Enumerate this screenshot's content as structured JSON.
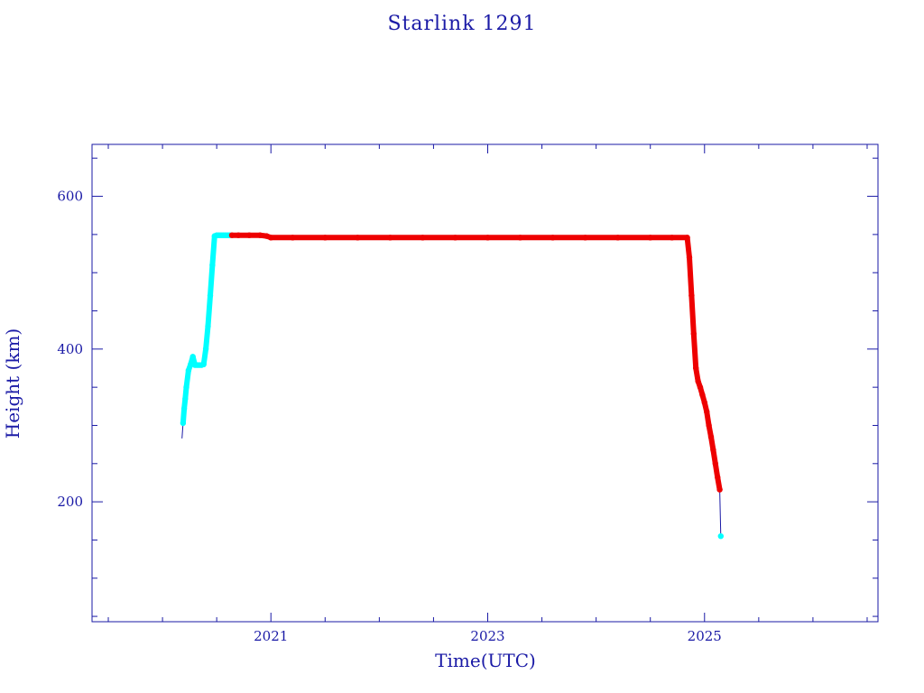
{
  "chart_data": {
    "type": "line",
    "title": "Starlink 1291",
    "xlabel": "Time(UTC)",
    "ylabel": "Height (km)",
    "xlim": [
      2019.35,
      2026.6
    ],
    "ylim": [
      43,
      668
    ],
    "x_major_ticks": [
      2021,
      2023,
      2025
    ],
    "x_minor_step": 0.5,
    "y_major_ticks": [
      200,
      400,
      600
    ],
    "y_minor_step": 50,
    "grid": false,
    "legend": "none",
    "colors": {
      "axes": "#1a1aa6",
      "line": "#1a1aa6",
      "phase1": "#00ffff",
      "phase2": "#ee0000"
    },
    "series": [
      {
        "color": "#00ffff",
        "x": [
          2020.19,
          2020.2,
          2020.21,
          2020.22,
          2020.24,
          2020.26,
          2020.28,
          2020.3,
          2020.32,
          2020.34,
          2020.36,
          2020.38,
          2020.4,
          2020.42,
          2020.44,
          2020.46,
          2020.48,
          2020.5,
          2020.52,
          2020.54,
          2020.56,
          2020.58,
          2020.6,
          2020.62
        ],
        "y": [
          303,
          322,
          335,
          350,
          372,
          380,
          390,
          379,
          379,
          379,
          379,
          380,
          400,
          430,
          470,
          510,
          548,
          549,
          549,
          549,
          549,
          549,
          549,
          549
        ]
      },
      {
        "color": "#ee0000",
        "x": [
          2020.64,
          2020.7,
          2020.8,
          2020.9,
          2020.96,
          2021.0,
          2021.2,
          2021.5,
          2021.8,
          2022.1,
          2022.4,
          2022.7,
          2023.0,
          2023.3,
          2023.6,
          2023.9,
          2024.2,
          2024.5,
          2024.7,
          2024.84,
          2024.86,
          2024.88,
          2024.9,
          2024.92,
          2024.94,
          2024.96,
          2024.98,
          2025.0,
          2025.02,
          2025.04,
          2025.06,
          2025.08,
          2025.1,
          2025.12,
          2025.14
        ],
        "y": [
          549,
          549,
          549,
          549,
          548,
          546,
          546,
          546,
          546,
          546,
          546,
          546,
          546,
          546,
          546,
          546,
          546,
          546,
          546,
          546,
          520,
          470,
          420,
          375,
          358,
          350,
          340,
          330,
          318,
          300,
          285,
          268,
          250,
          232,
          216
        ]
      },
      {
        "color": "#00ffff",
        "x": [
          2025.15
        ],
        "y": [
          155
        ]
      }
    ]
  }
}
